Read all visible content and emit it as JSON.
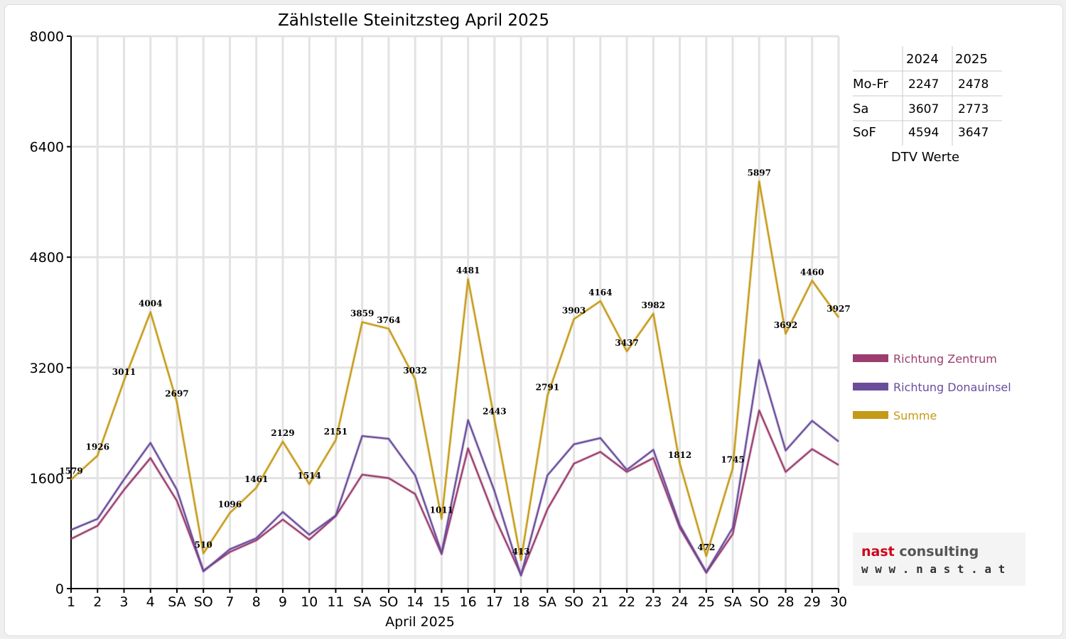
{
  "chart_data": {
    "type": "line",
    "title": "Zählstelle Steinitzsteg April 2025",
    "xlabel": "April 2025",
    "ylabel": "",
    "ylim": [
      0,
      8000
    ],
    "yticks": [
      0,
      1600,
      3200,
      4800,
      6400,
      8000
    ],
    "grid": true,
    "legend_position": "right",
    "categories": [
      "1",
      "2",
      "3",
      "4",
      "SA",
      "SO",
      "7",
      "8",
      "9",
      "10",
      "11",
      "SA",
      "SO",
      "14",
      "15",
      "16",
      "17",
      "18",
      "SA",
      "SO",
      "21",
      "22",
      "23",
      "24",
      "25",
      "SA",
      "SO",
      "28",
      "29",
      "30"
    ],
    "category_colors": [
      "#000000",
      "#000000",
      "#000000",
      "#000000",
      "#000000",
      "#ff0000",
      "#000000",
      "#000000",
      "#000000",
      "#000000",
      "#000000",
      "#000000",
      "#ff0000",
      "#000000",
      "#000000",
      "#000000",
      "#000000",
      "#000000",
      "#000000",
      "#ff0000",
      "#ff0000",
      "#000000",
      "#000000",
      "#000000",
      "#000000",
      "#000000",
      "#ff0000",
      "#000000",
      "#000000",
      "#000000"
    ],
    "series": [
      {
        "name": "Richtung Zentrum",
        "color": "#9b3d6e",
        "values": [
          720,
          910,
          1430,
          1890,
          1270,
          260,
          530,
          700,
          1000,
          710,
          1050,
          1650,
          1600,
          1370,
          500,
          2030,
          1040,
          200,
          1150,
          1810,
          1980,
          1690,
          1890,
          880,
          230,
          790,
          2580,
          1690,
          2020,
          1790
        ]
      },
      {
        "name": "Richtung Donauinsel",
        "color": "#6a4c9c",
        "values": [
          850,
          1010,
          1580,
          2110,
          1430,
          250,
          570,
          730,
          1110,
          780,
          1060,
          2210,
          2170,
          1640,
          520,
          2440,
          1410,
          190,
          1640,
          2090,
          2180,
          1720,
          2010,
          920,
          240,
          880,
          3310,
          2000,
          2430,
          2130
        ]
      },
      {
        "name": "Summe",
        "color": "#c59a16",
        "values": [
          1579,
          1926,
          3011,
          4004,
          2697,
          510,
          1096,
          1461,
          2129,
          1514,
          2151,
          3859,
          3764,
          3032,
          1011,
          4481,
          2443,
          413,
          2791,
          3903,
          4164,
          3437,
          3982,
          1812,
          472,
          1745,
          5897,
          3692,
          4460,
          3927
        ],
        "labels": [
          "1579",
          "1926",
          "3011",
          "4004",
          "2697",
          "510",
          "1096",
          "1461",
          "2129",
          "1514",
          "2151",
          "3859",
          "3764",
          "3032",
          "1011",
          "4481",
          "2443",
          "413",
          "2791",
          "3903",
          "4164",
          "3437",
          "3982",
          "1812",
          "472",
          "1745",
          "5897",
          "3692",
          "4460",
          "3927"
        ]
      }
    ]
  },
  "dtv_table": {
    "header": [
      "",
      "2024",
      "2025"
    ],
    "rows": [
      [
        "Mo-Fr",
        "2247",
        "2478"
      ],
      [
        "Sa",
        "3607",
        "2773"
      ],
      [
        "SoF",
        "4594",
        "3647"
      ]
    ],
    "caption": "DTV Werte"
  },
  "logo": {
    "line1_a": "nast",
    "line1_b": " consulting",
    "line2": "w w w . n a s t . a t",
    "color_a": "#d0021b",
    "color_b": "#555555"
  }
}
